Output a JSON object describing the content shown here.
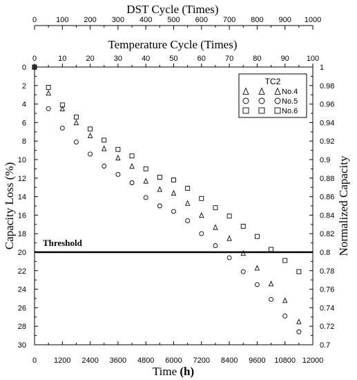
{
  "chart_data": {
    "type": "scatter",
    "title_top_axis_1": "DST Cycle (Times)",
    "title_top_axis_2": "Temperature Cycle (Times)",
    "xlabel": "Time",
    "xlabel_unit": "(h)",
    "ylabel_left": "Capacity Loss (%)",
    "ylabel_right": "Normalized Capacity",
    "x_range": [
      0,
      12000
    ],
    "x_ticks": [
      "0",
      "1200",
      "2400",
      "3600",
      "4800",
      "6000",
      "7200",
      "8400",
      "9600",
      "10800",
      "12000"
    ],
    "x_tick_values": [
      0,
      1200,
      2400,
      3600,
      4800,
      6000,
      7200,
      8400,
      9600,
      10800,
      12000
    ],
    "y_left_range": [
      0,
      30
    ],
    "y_left_ticks": [
      "0",
      "2",
      "4",
      "6",
      "8",
      "10",
      "12",
      "14",
      "16",
      "18",
      "20",
      "22",
      "24",
      "26",
      "28",
      "30"
    ],
    "y_left_tick_values": [
      0,
      2,
      4,
      6,
      8,
      10,
      12,
      14,
      16,
      18,
      20,
      22,
      24,
      26,
      28,
      30
    ],
    "y_right_ticks": [
      "1",
      "0.98",
      "0.96",
      "0.94",
      "0.92",
      "0.9",
      "0.88",
      "0.86",
      "0.84",
      "0.82",
      "0.8",
      "0.78",
      "0.76",
      "0.74",
      "0.72",
      "0.7"
    ],
    "y_right_tick_values": [
      1,
      0.98,
      0.96,
      0.94,
      0.92,
      0.9,
      0.88,
      0.86,
      0.84,
      0.82,
      0.8,
      0.78,
      0.76,
      0.74,
      0.72,
      0.7
    ],
    "dst_ticks": [
      "0",
      "100",
      "200",
      "300",
      "400",
      "500",
      "600",
      "700",
      "800",
      "900",
      "1000"
    ],
    "dst_tick_values": [
      0,
      100,
      200,
      300,
      400,
      500,
      600,
      700,
      800,
      900,
      1000
    ],
    "dst_range": [
      0,
      1000
    ],
    "temp_ticks": [
      "0",
      "10",
      "20",
      "30",
      "40",
      "50",
      "60",
      "70",
      "80",
      "90",
      "100"
    ],
    "temp_tick_values": [
      0,
      10,
      20,
      30,
      40,
      50,
      60,
      70,
      80,
      90,
      100
    ],
    "temp_range": [
      0,
      100
    ],
    "threshold": {
      "label": "Threshold",
      "value": 20
    },
    "legend": {
      "title": "TC2",
      "position": "top-right"
    },
    "series": [
      {
        "name": "No.4",
        "marker": "triangle",
        "points": [
          [
            0,
            0
          ],
          [
            600,
            2.8
          ],
          [
            1200,
            4.5
          ],
          [
            1800,
            6.0
          ],
          [
            2400,
            7.4
          ],
          [
            3000,
            8.8
          ],
          [
            3600,
            9.8
          ],
          [
            4200,
            10.7
          ],
          [
            4800,
            12.3
          ],
          [
            5400,
            13.2
          ],
          [
            6000,
            13.6
          ],
          [
            6600,
            14.7
          ],
          [
            7200,
            16.0
          ],
          [
            7800,
            17.3
          ],
          [
            8400,
            18.5
          ],
          [
            9000,
            20.1
          ],
          [
            9600,
            21.7
          ],
          [
            10200,
            23.4
          ],
          [
            10800,
            25.2
          ],
          [
            11400,
            27.5
          ]
        ]
      },
      {
        "name": "No.5",
        "marker": "circle",
        "points": [
          [
            0,
            0
          ],
          [
            600,
            4.5
          ],
          [
            1200,
            6.6
          ],
          [
            1800,
            8.1
          ],
          [
            2400,
            9.4
          ],
          [
            3000,
            10.7
          ],
          [
            3600,
            11.6
          ],
          [
            4200,
            12.5
          ],
          [
            4800,
            14.1
          ],
          [
            5400,
            15.0
          ],
          [
            6000,
            15.6
          ],
          [
            6600,
            16.6
          ],
          [
            7200,
            18.0
          ],
          [
            7800,
            19.3
          ],
          [
            8400,
            20.6
          ],
          [
            9000,
            22.1
          ],
          [
            9600,
            23.5
          ],
          [
            10200,
            25.1
          ],
          [
            10800,
            26.9
          ],
          [
            11400,
            28.6
          ]
        ]
      },
      {
        "name": "No.6",
        "marker": "square",
        "points": [
          [
            0,
            0
          ],
          [
            600,
            2.2
          ],
          [
            1200,
            4.1
          ],
          [
            1800,
            5.4
          ],
          [
            2400,
            6.7
          ],
          [
            3000,
            7.9
          ],
          [
            3600,
            8.9
          ],
          [
            4200,
            9.6
          ],
          [
            4800,
            11.0
          ],
          [
            5400,
            11.9
          ],
          [
            6000,
            12.2
          ],
          [
            6600,
            13.1
          ],
          [
            7200,
            14.2
          ],
          [
            7800,
            15.2
          ],
          [
            8400,
            16.1
          ],
          [
            9000,
            17.2
          ],
          [
            9600,
            18.3
          ],
          [
            10200,
            19.7
          ],
          [
            10800,
            20.9
          ],
          [
            11400,
            22.1
          ]
        ]
      }
    ]
  }
}
